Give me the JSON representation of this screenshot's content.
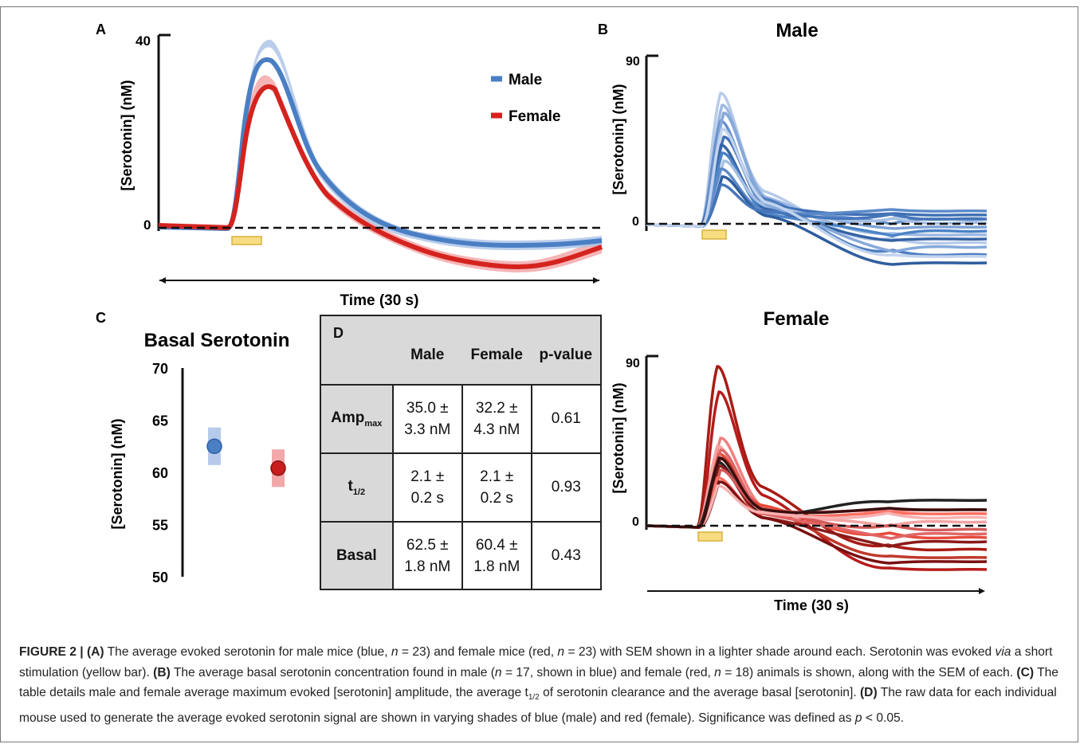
{
  "panelA": {
    "letter": "A",
    "ylabel": "[Serotonin] (nM)",
    "ytick_top": "40",
    "ytick_zero": "0",
    "xlabel": "Time (30 s)",
    "legend": [
      {
        "label": "Male",
        "color": "#4a7fc4"
      },
      {
        "label": "Female",
        "color": "#d4231e"
      }
    ]
  },
  "panelB": {
    "letter": "B",
    "male_title": "Male",
    "female_title": "Female",
    "ylabel": "[Serotonin] (nM)",
    "ytick_top": "90",
    "ytick_zero": "0",
    "xlabel": "Time (30 s)"
  },
  "panelC": {
    "letter": "C",
    "title": "Basal Serotonin",
    "ylabel": "[Serotonin] (nM)",
    "yticks": [
      "70",
      "65",
      "60",
      "55",
      "50"
    ]
  },
  "panelD": {
    "letter": "D",
    "columns": [
      "Male",
      "Female",
      "p-value"
    ],
    "rows": [
      {
        "label": "Amp",
        "label_sub": "max",
        "male_1": "35.0 ±",
        "male_2": "3.3 nM",
        "female_1": "32.2 ±",
        "female_2": "4.3 nM",
        "p": "0.61"
      },
      {
        "label": "t",
        "label_sub": "1/2",
        "male_1": "2.1 ±",
        "male_2": "0.2 s",
        "female_1": "2.1 ±",
        "female_2": "0.2 s",
        "p": "0.93"
      },
      {
        "label": "Basal",
        "label_sub": "",
        "male_1": "62.5 ±",
        "male_2": "1.8 nM",
        "female_1": "60.4 ±",
        "female_2": "1.8 nM",
        "p": "0.43"
      }
    ]
  },
  "chart_data": [
    {
      "type": "line",
      "panel": "A",
      "ylabel": "[Serotonin] (nM)",
      "xlabel": "Time (30 s)",
      "yticks": [
        0,
        40
      ],
      "series": [
        {
          "name": "Male",
          "color": "#4a7fc4",
          "peak": 35.0
        },
        {
          "name": "Female",
          "color": "#d4231e",
          "peak": 29.0
        }
      ]
    },
    {
      "type": "scatter",
      "panel": "C",
      "title": "Basal Serotonin",
      "ylabel": "[Serotonin] (nM)",
      "ylim": [
        50,
        70
      ],
      "points": [
        {
          "group": "male",
          "y": 62.5,
          "sem": 1.8,
          "color": "#4a7fc4"
        },
        {
          "group": "female",
          "y": 60.4,
          "sem": 1.8,
          "color": "#c81e1e"
        }
      ]
    }
  ],
  "caption": {
    "fig_label": "FIGURE 2 | (A)",
    "a_text": " The average evoked serotonin for male mice (blue, ",
    "n": "n",
    "a_text2": " = 23) and female mice (red, ",
    "a_text3": " = 23) with SEM shown in a lighter shade around each. Serotonin was evoked ",
    "via": "via",
    "a_text4": " a short stimulation (yellow bar). ",
    "b_label": "(B)",
    "b_text": " The average basal serotonin concentration found in male (",
    "b_text2": " = 17, shown in blue) and female (red, ",
    "b_text3": " = 18) animals is shown, along with the SEM of each. ",
    "c_label": "(C)",
    "c_text": " The table details male and female average maximum evoked [serotonin] amplitude, the average t",
    "c_sub": "1/2",
    "c_text2": " of serotonin clearance and the average basal [serotonin]. ",
    "d_label": "(D)",
    "d_text": " The raw data for each individual mouse used to generate the average evoked serotonin signal are shown in varying shades of blue (male) and red (female). Significance was defined as ",
    "p": "p",
    "d_text2": " < 0.05."
  }
}
